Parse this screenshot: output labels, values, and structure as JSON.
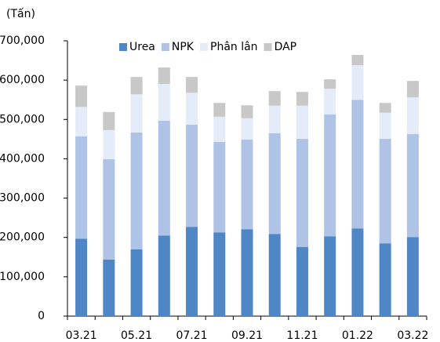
{
  "chart_data": {
    "type": "stacked_bar",
    "unit_label": "(Tấn)",
    "categories": [
      "03.21",
      null,
      "05.21",
      null,
      "07.21",
      null,
      "09.21",
      null,
      "11.21",
      null,
      "01.22",
      null,
      "03.22"
    ],
    "series": [
      {
        "name": "Urea",
        "color": "#4f86c6",
        "values": [
          197000,
          144000,
          170000,
          205000,
          227000,
          213000,
          221000,
          209000,
          176000,
          203000,
          223000,
          185000,
          201000
        ]
      },
      {
        "name": "NPK",
        "color": "#aec3e5",
        "values": [
          260000,
          255000,
          297000,
          292000,
          260000,
          230000,
          228000,
          256000,
          275000,
          310000,
          327000,
          266000,
          262000
        ]
      },
      {
        "name": "Phân lân",
        "color": "#e5ecf9",
        "values": [
          75000,
          74000,
          97000,
          93000,
          81000,
          64000,
          54000,
          70000,
          84000,
          65000,
          88000,
          66000,
          93000
        ]
      },
      {
        "name": "DAP",
        "color": "#c8c8c8",
        "values": [
          54000,
          46000,
          44000,
          42000,
          40000,
          35000,
          33000,
          37000,
          35000,
          24000,
          26000,
          25000,
          42000
        ]
      }
    ],
    "ylim": [
      0,
      700000
    ],
    "yticks": [
      0,
      {
        "value": 100000,
        "label": "100,000"
      },
      {
        "value": 200000,
        "label": "200,000"
      },
      {
        "value": 300000,
        "label": "300,000"
      },
      {
        "value": 400000,
        "label": "400,000"
      },
      {
        "value": 500000,
        "label": "500,000"
      },
      {
        "value": 600000,
        "label": "600,000"
      },
      {
        "value": 700000,
        "label": "700,000"
      }
    ],
    "legend": "top"
  }
}
